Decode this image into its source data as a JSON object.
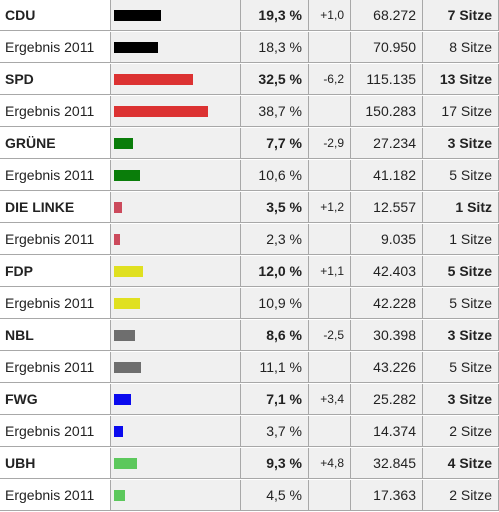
{
  "parties": [
    {
      "name": "CDU",
      "color": "#000000",
      "current": {
        "share": {
          "value": 19.3,
          "label": "19,3 %"
        },
        "change": "+1,0",
        "votes": "68.272",
        "seats": "7 Sitze"
      },
      "previous": {
        "name": "Ergebnis 2011",
        "share": {
          "value": 18.3,
          "label": "18,3 %"
        },
        "votes": "70.950",
        "seats": "8 Sitze"
      }
    },
    {
      "name": "SPD",
      "color": "#dc3232",
      "current": {
        "share": {
          "value": 32.5,
          "label": "32,5 %"
        },
        "change": "-6,2",
        "votes": "115.135",
        "seats": "13 Sitze"
      },
      "previous": {
        "name": "Ergebnis 2011",
        "share": {
          "value": 38.7,
          "label": "38,7 %"
        },
        "votes": "150.283",
        "seats": "17 Sitze"
      }
    },
    {
      "name": "GRÜNE",
      "color": "#0a7d0a",
      "current": {
        "share": {
          "value": 7.7,
          "label": "7,7 %"
        },
        "change": "-2,9",
        "votes": "27.234",
        "seats": "3 Sitze"
      },
      "previous": {
        "name": "Ergebnis 2011",
        "share": {
          "value": 10.6,
          "label": "10,6 %"
        },
        "votes": "41.182",
        "seats": "5 Sitze"
      }
    },
    {
      "name": "DIE LINKE",
      "color": "#cc4a5c",
      "current": {
        "share": {
          "value": 3.5,
          "label": "3,5 %"
        },
        "change": "+1,2",
        "votes": "12.557",
        "seats": "1 Sitz"
      },
      "previous": {
        "name": "Ergebnis 2011",
        "share": {
          "value": 2.3,
          "label": "2,3 %"
        },
        "votes": "9.035",
        "seats": "1 Sitze"
      }
    },
    {
      "name": "FDP",
      "color": "#e0e020",
      "current": {
        "share": {
          "value": 12.0,
          "label": "12,0 %"
        },
        "change": "+1,1",
        "votes": "42.403",
        "seats": "5 Sitze"
      },
      "previous": {
        "name": "Ergebnis 2011",
        "share": {
          "value": 10.9,
          "label": "10,9 %"
        },
        "votes": "42.228",
        "seats": "5 Sitze"
      }
    },
    {
      "name": "NBL",
      "color": "#6e6e6e",
      "current": {
        "share": {
          "value": 8.6,
          "label": "8,6 %"
        },
        "change": "-2,5",
        "votes": "30.398",
        "seats": "3 Sitze"
      },
      "previous": {
        "name": "Ergebnis 2011",
        "share": {
          "value": 11.1,
          "label": "11,1 %"
        },
        "votes": "43.226",
        "seats": "5 Sitze"
      }
    },
    {
      "name": "FWG",
      "color": "#0a0aee",
      "current": {
        "share": {
          "value": 7.1,
          "label": "7,1 %"
        },
        "change": "+3,4",
        "votes": "25.282",
        "seats": "3 Sitze"
      },
      "previous": {
        "name": "Ergebnis 2011",
        "share": {
          "value": 3.7,
          "label": "3,7 %"
        },
        "votes": "14.374",
        "seats": "2 Sitze"
      }
    },
    {
      "name": "UBH",
      "color": "#5cc85c",
      "current": {
        "share": {
          "value": 9.3,
          "label": "9,3 %"
        },
        "change": "+4,8",
        "votes": "32.845",
        "seats": "4 Sitze"
      },
      "previous": {
        "name": "Ergebnis 2011",
        "share": {
          "value": 4.5,
          "label": "4,5 %"
        },
        "votes": "17.363",
        "seats": "2 Sitze"
      }
    }
  ]
}
